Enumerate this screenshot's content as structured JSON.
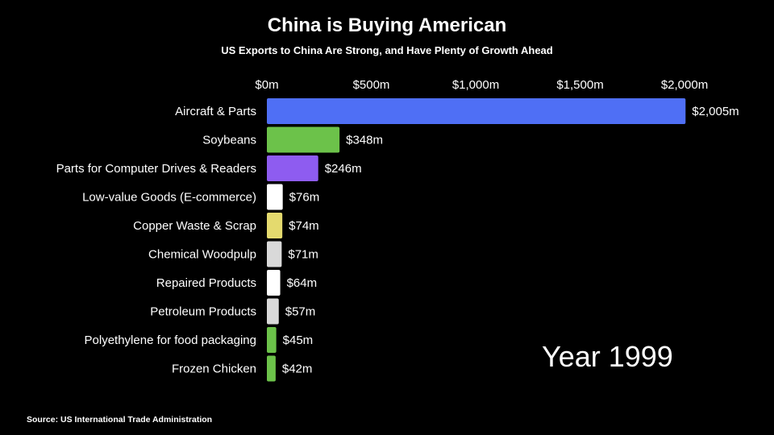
{
  "chart_data": {
    "type": "bar",
    "orientation": "horizontal",
    "title": "China is Buying American",
    "subtitle": "US Exports to China Are Strong, and Have Plenty of Growth Ahead",
    "xlim": [
      0,
      2000
    ],
    "x_ticks": [
      {
        "value": 0,
        "label": "$0m"
      },
      {
        "value": 500,
        "label": "$500m"
      },
      {
        "value": 1000,
        "label": "$1,000m"
      },
      {
        "value": 1500,
        "label": "$1,500m"
      },
      {
        "value": 2000,
        "label": "$2,000m"
      }
    ],
    "axis_position": "top",
    "grid": false,
    "bars": [
      {
        "category": "Aircraft & Parts",
        "value": 2005,
        "label": "$2,005m",
        "color": "#4f6ff5"
      },
      {
        "category": "Soybeans",
        "value": 348,
        "label": "$348m",
        "color": "#6cc24a"
      },
      {
        "category": "Parts for Computer Drives & Readers",
        "value": 246,
        "label": "$246m",
        "color": "#8e5cf0"
      },
      {
        "category": "Low-value Goods (E-commerce)",
        "value": 76,
        "label": "$76m",
        "color": "#ffffff"
      },
      {
        "category": "Copper Waste & Scrap",
        "value": 74,
        "label": "$74m",
        "color": "#e4da6e"
      },
      {
        "category": "Chemical Woodpulp",
        "value": 71,
        "label": "$71m",
        "color": "#d9d9d9"
      },
      {
        "category": "Repaired Products",
        "value": 64,
        "label": "$64m",
        "color": "#ffffff"
      },
      {
        "category": "Petroleum Products",
        "value": 57,
        "label": "$57m",
        "color": "#d9d9d9"
      },
      {
        "category": "Polyethylene for food packaging",
        "value": 45,
        "label": "$45m",
        "color": "#6cc24a"
      },
      {
        "category": "Frozen Chicken",
        "value": 42,
        "label": "$42m",
        "color": "#6cc24a"
      }
    ]
  },
  "year_label": "Year 1999",
  "source": "Source: US International Trade Administration"
}
